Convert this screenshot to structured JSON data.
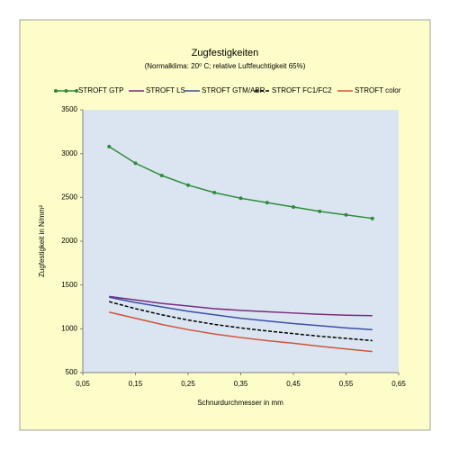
{
  "chart_data": {
    "type": "line",
    "title": "Zugfestigkeiten",
    "subtitle": "(Normalklima: 20⁰ C;  relative Luftfeuchtigkeit 65%)",
    "x_label": "Schnurdurchmesser in mm",
    "y_label": "Zugfestigkeit in N/mm²",
    "x": [
      0.1,
      0.15,
      0.2,
      0.25,
      0.3,
      0.35,
      0.4,
      0.45,
      0.5,
      0.55,
      0.6
    ],
    "series": [
      {
        "name": "STROFT GTP",
        "color": "#2e8b3a",
        "markers": true,
        "dashed": false,
        "values": [
          3080,
          2890,
          2750,
          2640,
          2555,
          2490,
          2440,
          2390,
          2340,
          2300,
          2260
        ]
      },
      {
        "name": "STROFT LS",
        "color": "#7b2a7f",
        "markers": false,
        "dashed": false,
        "values": [
          1370,
          1330,
          1290,
          1260,
          1230,
          1210,
          1195,
          1180,
          1165,
          1155,
          1150
        ]
      },
      {
        "name": "STROFT GTM/ABR",
        "color": "#3b4fa3",
        "markers": false,
        "dashed": false,
        "values": [
          1360,
          1300,
          1250,
          1200,
          1160,
          1120,
          1090,
          1060,
          1035,
          1010,
          990
        ]
      },
      {
        "name": "STROFT FC1/FC2",
        "color": "#000000",
        "markers": false,
        "dashed": true,
        "values": [
          1310,
          1230,
          1160,
          1100,
          1050,
          1010,
          975,
          945,
          915,
          890,
          865
        ]
      },
      {
        "name": "STROFT color",
        "color": "#d0533a",
        "markers": false,
        "dashed": false,
        "values": [
          1190,
          1120,
          1050,
          990,
          940,
          900,
          865,
          835,
          800,
          770,
          740
        ]
      }
    ],
    "xlim": [
      0.05,
      0.65
    ],
    "xticks": [
      {
        "value": 0.05,
        "label": "0,05"
      },
      {
        "value": 0.15,
        "label": "0,15"
      },
      {
        "value": 0.25,
        "label": "0,25"
      },
      {
        "value": 0.35,
        "label": "0,35"
      },
      {
        "value": 0.45,
        "label": "0,45"
      },
      {
        "value": 0.55,
        "label": "0,55"
      },
      {
        "value": 0.65,
        "label": "0,65"
      }
    ],
    "ylim": [
      500,
      3500
    ],
    "yticks": [
      500,
      1000,
      1500,
      2000,
      2500,
      3000,
      3500
    ],
    "grid": false,
    "legend": "top"
  }
}
